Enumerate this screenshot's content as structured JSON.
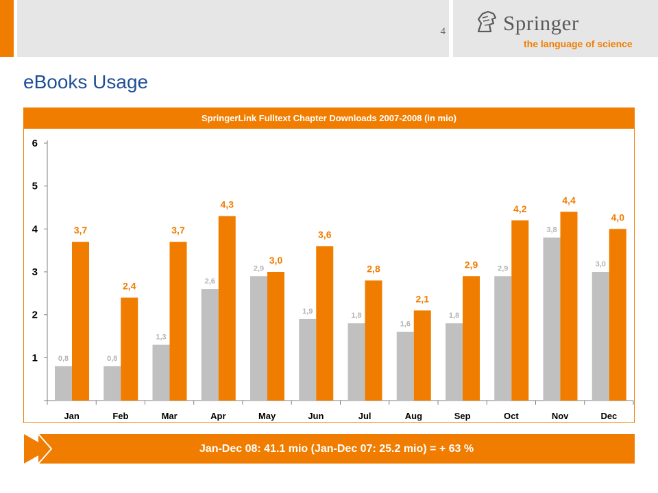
{
  "header": {
    "page_number": "4",
    "logo_name": "Springer",
    "logo_tagline": "the language of science"
  },
  "title": "eBooks Usage",
  "chart_header": "SpringerLink Fulltext Chapter Downloads 2007-2008 (in mio)",
  "summary": "Jan-Dec 08: 41.1 mio (Jan-Dec 07: 25.2 mio) = + 63 %",
  "colors": {
    "accent": "#f07d00",
    "series_2007": "#c0c0c0",
    "series_2008": "#f07d00",
    "title_blue": "#1e4f96"
  },
  "chart_data": {
    "type": "bar",
    "title": "SpringerLink Fulltext Chapter Downloads 2007-2008 (in mio)",
    "categories": [
      "Jan",
      "Feb",
      "Mar",
      "Apr",
      "May",
      "Jun",
      "Jul",
      "Aug",
      "Sep",
      "Oct",
      "Nov",
      "Dec"
    ],
    "series": [
      {
        "values": [
          0.8,
          0.8,
          1.3,
          2.6,
          2.9,
          1.9,
          1.8,
          1.6,
          1.8,
          2.9,
          3.8,
          3.0
        ],
        "labels": [
          "0,8",
          "0,8",
          "1,3",
          "2,6",
          "2,9",
          "1,9",
          "1,8",
          "1,6",
          "1,8",
          "2,9",
          "3,8",
          "3,0"
        ],
        "color": "#c0c0c0"
      },
      {
        "values": [
          3.7,
          2.4,
          3.7,
          4.3,
          3.0,
          3.6,
          2.8,
          2.1,
          2.9,
          4.2,
          4.4,
          4.0
        ],
        "labels": [
          "3,7",
          "2,4",
          "3,7",
          "4,3",
          "3,0",
          "3,6",
          "2,8",
          "2,1",
          "2,9",
          "4,2",
          "4,4",
          "4,0"
        ],
        "color": "#f07d00"
      }
    ],
    "yticks": [
      "1",
      "2",
      "3",
      "4",
      "5",
      "6"
    ],
    "ylim": [
      0,
      6
    ],
    "grid": false,
    "legend": "none"
  }
}
